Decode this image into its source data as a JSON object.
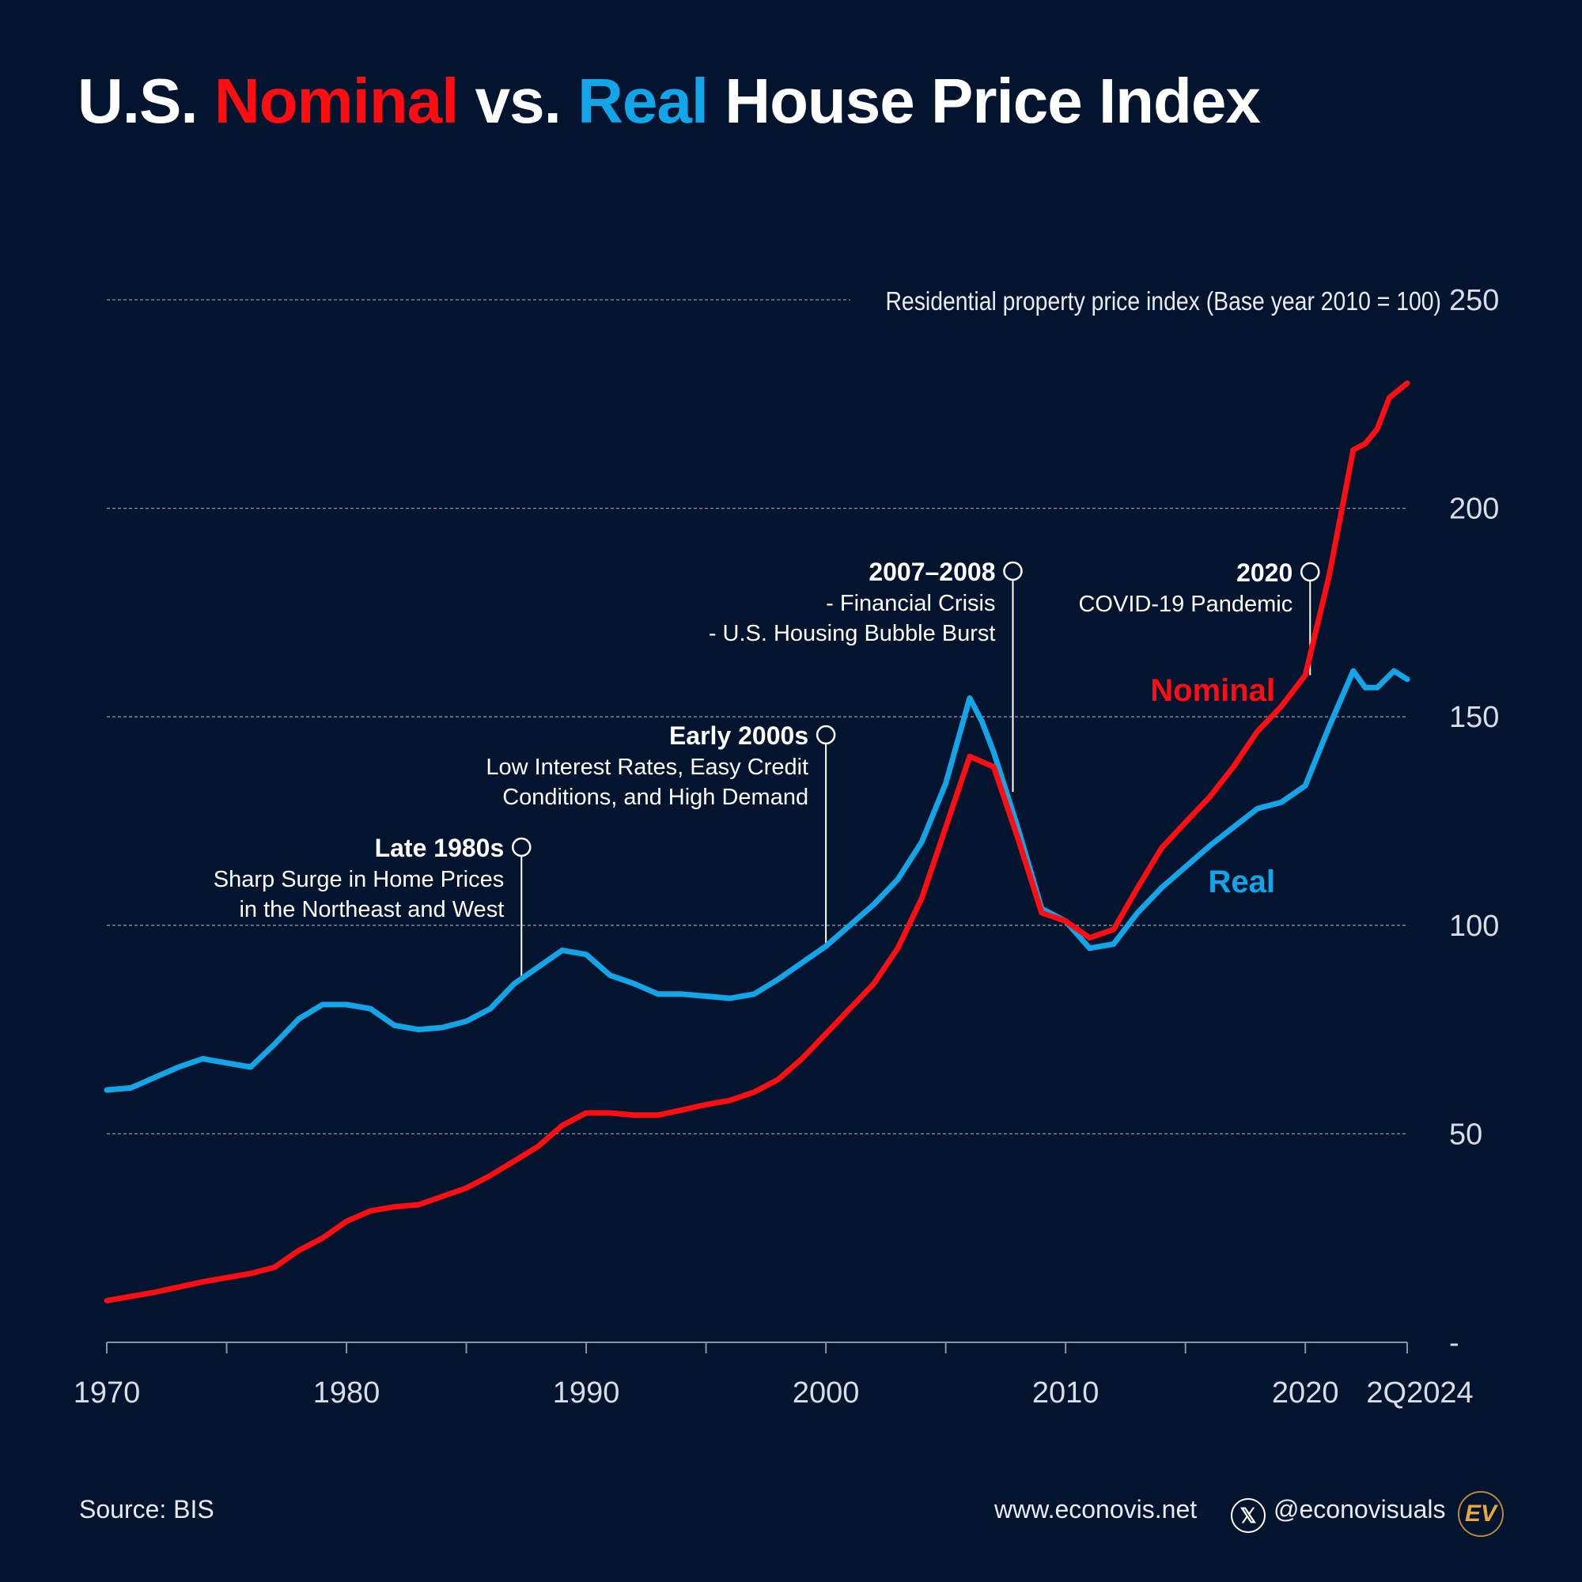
{
  "title": {
    "part1": "U.S. ",
    "nominal": "Nominal",
    "part2": " vs. ",
    "real": "Real",
    "part3": " House Price Index"
  },
  "footer": {
    "source": "Source: BIS",
    "website": "www.econovis.net",
    "handle": "@econovisuals",
    "x_icon": "x-logo-icon",
    "logo_text": "EV"
  },
  "colors": {
    "background": "#02142e",
    "nominal": "#ff0d12",
    "real": "#12a6e8",
    "logo": "#e8a93a"
  },
  "chart_data": {
    "type": "line",
    "ylabel": "Residential property price index (Base year 2010 = 100)",
    "ylim": [
      0,
      250
    ],
    "yticks": [
      "-",
      "50",
      "100",
      "150",
      "200",
      "250"
    ],
    "xlim": [
      1970,
      2024.25
    ],
    "xticks": [
      1970,
      1975,
      1980,
      1985,
      1990,
      1995,
      2000,
      2005,
      2010,
      2015,
      2020,
      2024.25
    ],
    "xtick_labels": [
      "1970",
      "1980",
      "1990",
      "2000",
      "2010",
      "2020",
      "2Q2024"
    ],
    "grid": "horizontal dashed",
    "series": [
      {
        "name": "Nominal",
        "color": "#ff0d12",
        "x": [
          1970,
          1972,
          1974,
          1976,
          1977,
          1978,
          1979,
          1980,
          1981,
          1982,
          1983,
          1984,
          1985,
          1986,
          1987,
          1988,
          1989,
          1990,
          1991,
          1992,
          1993,
          1994,
          1995,
          1996,
          1997,
          1998,
          1999,
          2000,
          2001,
          2002,
          2003,
          2004,
          2005,
          2006,
          2007,
          2008,
          2009,
          2010,
          2011,
          2012,
          2013,
          2014,
          2015,
          2016,
          2017,
          2018,
          2019,
          2020,
          2021,
          2022,
          2022.5,
          2023,
          2023.5,
          2024.25
        ],
        "y": [
          10,
          12,
          14.5,
          16.5,
          18,
          22,
          25,
          29,
          31.5,
          32.5,
          33,
          35,
          37,
          40,
          43.5,
          47,
          52,
          55,
          55,
          54.5,
          54.5,
          55.7,
          57,
          58,
          60,
          63,
          68,
          74,
          80,
          86,
          94.5,
          106.5,
          123.5,
          140.5,
          138,
          121,
          103,
          101,
          97,
          99,
          109,
          118.5,
          124.7,
          130.7,
          138,
          146.5,
          152.5,
          160,
          184,
          214,
          215.5,
          219,
          226.5,
          230
        ]
      },
      {
        "name": "Real",
        "color": "#12a6e8",
        "x": [
          1970,
          1971,
          1972,
          1973,
          1974,
          1975,
          1976,
          1977,
          1978,
          1979,
          1980,
          1981,
          1982,
          1983,
          1984,
          1985,
          1986,
          1987,
          1988,
          1989,
          1990,
          1991,
          1992,
          1993,
          1994,
          1995,
          1996,
          1997,
          1998,
          1999,
          2000,
          2001,
          2002,
          2003,
          2004,
          2005,
          2006,
          2006.5,
          2007,
          2008,
          2009,
          2010,
          2011,
          2012,
          2013,
          2014,
          2015,
          2016,
          2017,
          2018,
          2019,
          2020,
          2021,
          2022,
          2022.5,
          2023,
          2023.7,
          2024.25
        ],
        "y": [
          60.5,
          61,
          63.5,
          66,
          68,
          67,
          66,
          71.5,
          77.5,
          81,
          81,
          80,
          76,
          75,
          75.5,
          77,
          80,
          86,
          90,
          94,
          93,
          88,
          86,
          83.5,
          83.5,
          83,
          82.5,
          83.5,
          87,
          91,
          95,
          100,
          105,
          111,
          120,
          134,
          154.5,
          149,
          141.5,
          123.5,
          104,
          101,
          94.5,
          95.5,
          103,
          109,
          114,
          119,
          123.5,
          128,
          129.5,
          133.5,
          147.7,
          161,
          157,
          157,
          161,
          159
        ]
      }
    ],
    "series_labels": {
      "nominal": "Nominal",
      "real": "Real"
    },
    "annotations": [
      {
        "year": 1987.3,
        "value": 87,
        "title": "Late 1980s",
        "lines": [
          "Sharp Surge in Home Prices",
          "in the Northeast and West"
        ]
      },
      {
        "year": 2000.0,
        "value": 95,
        "title": "Early 2000s",
        "lines": [
          "Low Interest Rates, Easy Credit",
          "Conditions, and High Demand"
        ]
      },
      {
        "year": 2007.8,
        "value": 132,
        "title": "2007–2008",
        "lines": [
          "- Financial Crisis",
          "- U.S. Housing Bubble Burst"
        ]
      },
      {
        "year": 2020.2,
        "value": 160,
        "title": "2020",
        "lines": [
          "COVID-19 Pandemic"
        ]
      }
    ]
  }
}
